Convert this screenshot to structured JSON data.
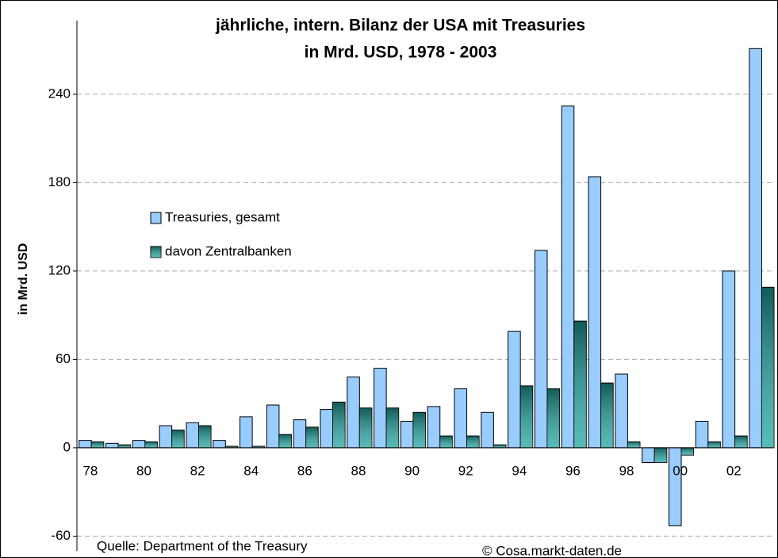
{
  "chart_data": {
    "type": "bar",
    "title": [
      "jährliche, intern. Bilanz der USA mit Treasuries",
      "in Mrd. USD, 1978 - 2003"
    ],
    "y_label": "in Mrd. USD",
    "annotations": [
      "Quelle: Department of the Treasury",
      "© Cosa.markt-daten.de"
    ],
    "categories": [
      "78",
      null,
      "80",
      null,
      "82",
      null,
      "84",
      null,
      "86",
      null,
      "88",
      null,
      "90",
      null,
      "92",
      null,
      "94",
      null,
      "96",
      null,
      "98",
      null,
      "00",
      null,
      "02",
      null
    ],
    "series": [
      {
        "name": "Treasuries, gesamt",
        "color": "#99ccff",
        "values": [
          5,
          3,
          5,
          15,
          17,
          5,
          21,
          29,
          19,
          26,
          48,
          54,
          18,
          28,
          40,
          24,
          79,
          134,
          232,
          184,
          50,
          -10,
          -53,
          18,
          120,
          271
        ]
      },
      {
        "name": "davon Zentralbanken",
        "color": "#1fa5a0",
        "values": [
          4,
          2,
          4,
          12,
          15,
          1,
          1,
          9,
          14,
          31,
          27,
          27,
          24,
          8,
          8,
          2,
          42,
          40,
          86,
          44,
          4,
          -10,
          -5,
          4,
          8,
          109
        ]
      }
    ],
    "ylim": [
      -70,
      290
    ],
    "yticks": [
      -60,
      0,
      60,
      120,
      180,
      240
    ],
    "grid": true
  }
}
